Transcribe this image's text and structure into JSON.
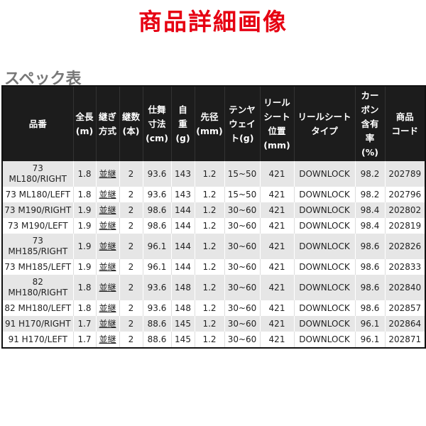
{
  "title": "商品詳細画像",
  "subtitle": "スペック表",
  "colors": {
    "title": "#e60012",
    "header_bg": "#1c1c1c",
    "row_alt": "#e6e6e6"
  },
  "headers": [
    "品番",
    "全長\n(m)",
    "継ぎ\n方式",
    "継数\n(本)",
    "仕舞\n寸法\n(cm)",
    "自\n重\n(g)",
    "先径\n(mm)",
    "テンヤ\nウェイ\nト(g)",
    "リール\nシート\n位置\n(mm)",
    "リールシート\nタイプ",
    "カー\nボン\n含有\n率\n(%)",
    "商品\nコード"
  ],
  "rows": [
    [
      "73 ML180/RIGHT",
      "1.8",
      "並継",
      "2",
      "93.6",
      "143",
      "1.2",
      "15~50",
      "421",
      "DOWNLOCK",
      "98.2",
      "202789"
    ],
    [
      "73 ML180/LEFT",
      "1.8",
      "並継",
      "2",
      "93.6",
      "143",
      "1.2",
      "15~50",
      "421",
      "DOWNLOCK",
      "98.2",
      "202796"
    ],
    [
      "73 M190/RIGHT",
      "1.9",
      "並継",
      "2",
      "98.6",
      "144",
      "1.2",
      "30~60",
      "421",
      "DOWNLOCK",
      "98.4",
      "202802"
    ],
    [
      "73 M190/LEFT",
      "1.9",
      "並継",
      "2",
      "98.6",
      "144",
      "1.2",
      "30~60",
      "421",
      "DOWNLOCK",
      "98.4",
      "202819"
    ],
    [
      "73 MH185/RIGHT",
      "1.9",
      "並継",
      "2",
      "96.1",
      "144",
      "1.2",
      "30~60",
      "421",
      "DOWNLOCK",
      "98.6",
      "202826"
    ],
    [
      "73 MH185/LEFT",
      "1.9",
      "並継",
      "2",
      "96.1",
      "144",
      "1.2",
      "30~60",
      "421",
      "DOWNLOCK",
      "98.6",
      "202833"
    ],
    [
      "82 MH180/RIGHT",
      "1.8",
      "並継",
      "2",
      "93.6",
      "148",
      "1.2",
      "30~60",
      "421",
      "DOWNLOCK",
      "98.6",
      "202840"
    ],
    [
      "82 MH180/LEFT",
      "1.8",
      "並継",
      "2",
      "93.6",
      "148",
      "1.2",
      "30~60",
      "421",
      "DOWNLOCK",
      "98.6",
      "202857"
    ],
    [
      "91 H170/RIGHT",
      "1.7",
      "並継",
      "2",
      "88.6",
      "145",
      "1.2",
      "30~60",
      "421",
      "DOWNLOCK",
      "96.1",
      "202864"
    ],
    [
      "91 H170/LEFT",
      "1.7",
      "並継",
      "2",
      "88.6",
      "145",
      "1.2",
      "30~60",
      "421",
      "DOWNLOCK",
      "96.1",
      "202871"
    ]
  ]
}
